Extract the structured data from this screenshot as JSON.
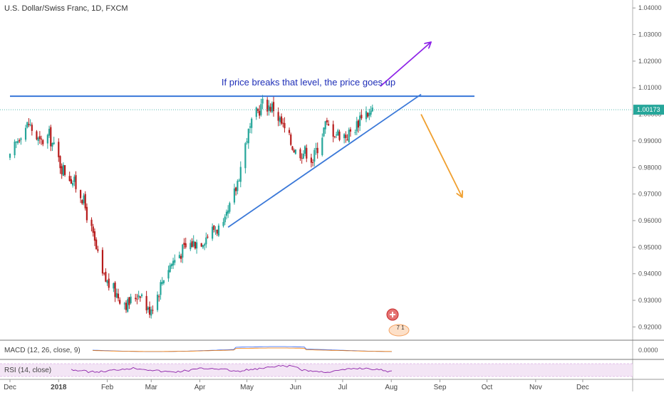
{
  "chart_data": {
    "type": "candlestick",
    "title": "U.S. Dollar/Swiss Franc, 1D, FXCM",
    "ylim": [
      0.915,
      1.043
    ],
    "y_ticks": [
      0.92,
      0.93,
      0.94,
      0.95,
      0.96,
      0.97,
      0.98,
      0.99,
      1.0,
      1.01,
      1.02,
      1.03,
      1.04
    ],
    "y_tick_labels": [
      "0.92000",
      "0.93000",
      "0.94000",
      "0.95000",
      "0.96000",
      "0.97000",
      "0.98000",
      "0.99000",
      "1.00000",
      "1.01000",
      "1.02000",
      "1.03000",
      "1.04000"
    ],
    "x_range": [
      "2017-12-01",
      "2018-12-31"
    ],
    "x_ticks": [
      {
        "date": "2017-12-01",
        "label": "Dec"
      },
      {
        "date": "2018-01-01",
        "label": "2018"
      },
      {
        "date": "2018-02-01",
        "label": "Feb"
      },
      {
        "date": "2018-03-01",
        "label": "Mar"
      },
      {
        "date": "2018-04-01",
        "label": "Apr"
      },
      {
        "date": "2018-05-01",
        "label": "May"
      },
      {
        "date": "2018-06-01",
        "label": "Jun"
      },
      {
        "date": "2018-07-01",
        "label": "Jul"
      },
      {
        "date": "2018-08-01",
        "label": "Aug"
      },
      {
        "date": "2018-09-01",
        "label": "Sep"
      },
      {
        "date": "2018-10-01",
        "label": "Oct"
      },
      {
        "date": "2018-11-01",
        "label": "Nov"
      },
      {
        "date": "2018-12-01",
        "label": "Dec"
      }
    ],
    "price_path": [
      {
        "date": "2017-12-01",
        "value": 0.983
      },
      {
        "date": "2017-12-08",
        "value": 0.9935
      },
      {
        "date": "2017-12-13",
        "value": 0.9965
      },
      {
        "date": "2017-12-20",
        "value": 0.989
      },
      {
        "date": "2017-12-26",
        "value": 0.992
      },
      {
        "date": "2018-01-03",
        "value": 0.98
      },
      {
        "date": "2018-01-09",
        "value": 0.976
      },
      {
        "date": "2018-01-16",
        "value": 0.969
      },
      {
        "date": "2018-01-22",
        "value": 0.956
      },
      {
        "date": "2018-01-29",
        "value": 0.939
      },
      {
        "date": "2018-02-06",
        "value": 0.933
      },
      {
        "date": "2018-02-14",
        "value": 0.9285
      },
      {
        "date": "2018-02-22",
        "value": 0.9335
      },
      {
        "date": "2018-02-27",
        "value": 0.926
      },
      {
        "date": "2018-03-04",
        "value": 0.9305
      },
      {
        "date": "2018-03-10",
        "value": 0.941
      },
      {
        "date": "2018-03-18",
        "value": 0.947
      },
      {
        "date": "2018-03-25",
        "value": 0.951
      },
      {
        "date": "2018-04-03",
        "value": 0.953
      },
      {
        "date": "2018-04-10",
        "value": 0.957
      },
      {
        "date": "2018-04-16",
        "value": 0.957
      },
      {
        "date": "2018-04-24",
        "value": 0.972
      },
      {
        "date": "2018-05-01",
        "value": 0.9915
      },
      {
        "date": "2018-05-07",
        "value": 1.0
      },
      {
        "date": "2018-05-11",
        "value": 1.004
      },
      {
        "date": "2018-05-18",
        "value": 1.0025
      },
      {
        "date": "2018-05-25",
        "value": 0.994
      },
      {
        "date": "2018-06-01",
        "value": 0.986
      },
      {
        "date": "2018-06-08",
        "value": 0.986
      },
      {
        "date": "2018-06-12",
        "value": 0.983
      },
      {
        "date": "2018-06-20",
        "value": 0.996
      },
      {
        "date": "2018-06-27",
        "value": 0.993
      },
      {
        "date": "2018-07-04",
        "value": 0.992
      },
      {
        "date": "2018-07-10",
        "value": 0.996
      },
      {
        "date": "2018-07-14",
        "value": 1.002
      },
      {
        "date": "2018-07-18",
        "value": 1.0
      },
      {
        "date": "2018-07-21",
        "value": 1.0017
      }
    ],
    "last_price": {
      "value": 1.00173,
      "label": "1.00173"
    },
    "annotations": {
      "resistance": {
        "value": 1.0068,
        "x_start": "2017-12-01",
        "x_end": "2018-09-23",
        "color": "#2b6fd6"
      },
      "support": {
        "start": {
          "date": "2018-04-19",
          "value": 0.9575
        },
        "end": {
          "date": "2018-08-20",
          "value": 1.0075
        },
        "color": "#3a78d8"
      },
      "up_arrow": {
        "start": {
          "date": "2018-07-25",
          "value": 1.0105
        },
        "end": {
          "date": "2018-08-26",
          "value": 1.027
        },
        "color": "#8e24e8"
      },
      "down_arrow": {
        "start": {
          "date": "2018-08-20",
          "value": 1.0
        },
        "end": {
          "date": "2018-09-15",
          "value": 0.969
        },
        "color": "#f0a030"
      },
      "text": {
        "label": "If price breaks that level, the price goes up",
        "color": "#1f2fb8"
      }
    },
    "macd": {
      "label": "MACD (12, 26, close, 9)",
      "tick_label": "0.0000"
    },
    "rsi": {
      "label": "RSI (14, close)"
    },
    "event_badge": "7 1",
    "colors": {
      "up": "#26a69a",
      "down": "#b71c1c",
      "axis": "#888888",
      "macd_line": "#2962ff",
      "signal_line": "#f57c00",
      "rsi_line": "#8e24aa",
      "rsi_band": "#f3e5f5"
    }
  }
}
